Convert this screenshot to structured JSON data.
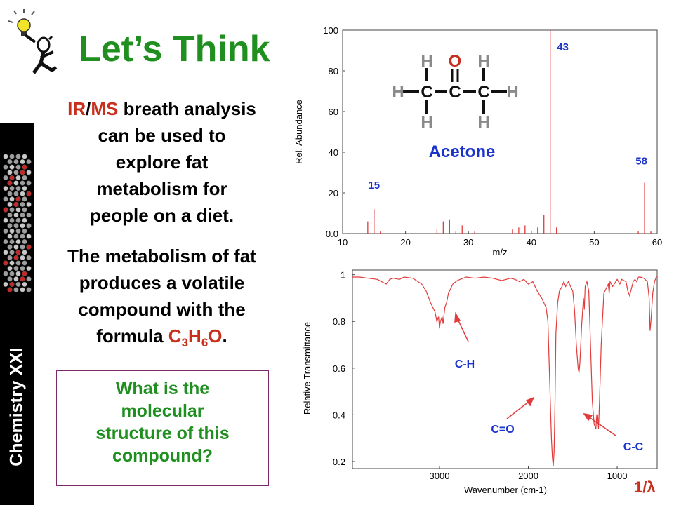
{
  "sidebar": {
    "label": "Chemistry XXI"
  },
  "slide": {
    "title": "Let’s Think",
    "intro": {
      "ir": "IR",
      "slash": "/",
      "ms": "MS",
      "line1_rest": " breath analysis",
      "line2": "can be used to",
      "line3": "explore fat",
      "line4": "metabolism for",
      "line5": "people on a diet."
    },
    "metabolism": {
      "line1": "The metabolism of fat",
      "line2": "produces a volatile",
      "line3": "compound with the",
      "line4_prefix": "formula ",
      "formula_c": "C",
      "formula_c_sub": "3",
      "formula_h": "H",
      "formula_h_sub": "6",
      "formula_o": "O",
      "line4_suffix": "."
    },
    "question": {
      "line1": "What is the",
      "line2": "molecular",
      "line3": "structure of this",
      "line4": "compound?"
    },
    "inverse_wavelength_label": "1/λ"
  },
  "colors": {
    "title_green": "#1f8f1f",
    "accent_red": "#c8301e",
    "spectrum_red": "#e33b3b",
    "annotation_blue": "#1a33cc",
    "structure_gray": "#8a8a8a"
  },
  "acetone_structure": {
    "label": "Acetone",
    "atoms": {
      "carbon": "C",
      "hydrogen": "H",
      "oxygen": "O"
    }
  },
  "chart_data": [
    {
      "type": "bar",
      "subtype": "mass-spectrum",
      "xlabel": "m/z",
      "ylabel": "Rel. Abundance",
      "xlim": [
        10,
        60
      ],
      "ylim": [
        0,
        100
      ],
      "xticks": [
        "10",
        "20",
        "30",
        "40",
        "50",
        "60"
      ],
      "yticks": [
        "0.0",
        "20",
        "40",
        "60",
        "80",
        "100"
      ],
      "grid": false,
      "peaks": [
        {
          "x": 14,
          "y": 6
        },
        {
          "x": 15,
          "y": 12
        },
        {
          "x": 16,
          "y": 1
        },
        {
          "x": 25,
          "y": 2
        },
        {
          "x": 26,
          "y": 6
        },
        {
          "x": 27,
          "y": 7
        },
        {
          "x": 28,
          "y": 1
        },
        {
          "x": 29,
          "y": 4
        },
        {
          "x": 31,
          "y": 1
        },
        {
          "x": 37,
          "y": 2
        },
        {
          "x": 38,
          "y": 3
        },
        {
          "x": 39,
          "y": 4
        },
        {
          "x": 40,
          "y": 1
        },
        {
          "x": 41,
          "y": 3
        },
        {
          "x": 42,
          "y": 9
        },
        {
          "x": 43,
          "y": 100
        },
        {
          "x": 44,
          "y": 3
        },
        {
          "x": 57,
          "y": 1
        },
        {
          "x": 58,
          "y": 25
        },
        {
          "x": 59,
          "y": 1
        }
      ],
      "annotations": [
        {
          "text": "15",
          "x": 15,
          "y": 22
        },
        {
          "text": "43",
          "x": 45,
          "y": 90
        },
        {
          "text": "58",
          "x": 57.5,
          "y": 34
        }
      ]
    },
    {
      "type": "line",
      "subtype": "ir-spectrum",
      "xlabel": "Wavenumber (cm-1)",
      "ylabel": "Relative Transmittance",
      "xlim": [
        3980,
        550
      ],
      "ylim": [
        0.17,
        1.02
      ],
      "xticks": [
        "3000",
        "2000",
        "1000"
      ],
      "xtick_values": [
        3000,
        2000,
        1000
      ],
      "yticks": [
        "0.2",
        "0.4",
        "0.6",
        "0.8",
        "1"
      ],
      "ytick_values": [
        0.2,
        0.4,
        0.6,
        0.8,
        1.0
      ],
      "grid": false,
      "series": [
        {
          "x": [
            3980,
            3900,
            3800,
            3700,
            3600,
            3560,
            3520,
            3450,
            3400,
            3300,
            3200,
            3150,
            3100,
            3050,
            3030,
            3010,
            3000,
            2990,
            2970,
            2960,
            2940,
            2920,
            2900,
            2850,
            2800,
            2700,
            2600,
            2500,
            2400,
            2300,
            2200,
            2150,
            2100,
            2050,
            2000,
            1950,
            1900,
            1850,
            1800,
            1780,
            1760,
            1740,
            1730,
            1720,
            1710,
            1700,
            1690,
            1670,
            1650,
            1620,
            1600,
            1580,
            1550,
            1500,
            1480,
            1460,
            1440,
            1430,
            1420,
            1410,
            1400,
            1380,
            1370,
            1360,
            1340,
            1320,
            1300,
            1280,
            1260,
            1240,
            1230,
            1220,
            1210,
            1200,
            1180,
            1150,
            1100,
            1090,
            1080,
            1050,
            1000,
            970,
            950,
            900,
            880,
            860,
            820,
            800,
            780,
            760,
            740,
            700,
            660,
            640,
            630,
            620,
            600,
            580,
            560,
            550
          ],
          "y": [
            0.99,
            0.99,
            0.985,
            0.98,
            0.96,
            0.98,
            0.985,
            0.98,
            0.99,
            0.985,
            0.96,
            0.93,
            0.88,
            0.84,
            0.8,
            0.82,
            0.77,
            0.8,
            0.82,
            0.79,
            0.86,
            0.88,
            0.92,
            0.96,
            0.975,
            0.99,
            0.985,
            0.99,
            0.985,
            0.975,
            0.985,
            0.98,
            0.97,
            0.98,
            0.96,
            0.97,
            0.93,
            0.9,
            0.86,
            0.8,
            0.55,
            0.3,
            0.22,
            0.18,
            0.24,
            0.45,
            0.75,
            0.88,
            0.93,
            0.95,
            0.97,
            0.95,
            0.97,
            0.93,
            0.85,
            0.7,
            0.6,
            0.58,
            0.62,
            0.7,
            0.78,
            0.9,
            0.85,
            0.95,
            0.97,
            0.93,
            0.7,
            0.46,
            0.36,
            0.34,
            0.4,
            0.4,
            0.34,
            0.45,
            0.7,
            0.92,
            0.96,
            0.92,
            0.97,
            0.95,
            0.98,
            0.96,
            0.98,
            0.97,
            0.93,
            0.91,
            0.97,
            0.98,
            0.97,
            0.99,
            0.99,
            0.985,
            0.97,
            0.9,
            0.76,
            0.8,
            0.92,
            0.97,
            0.99,
            0.99
          ]
        }
      ],
      "annotations": [
        {
          "text": "C-H"
        },
        {
          "text": "C=O"
        },
        {
          "text": "C-C"
        }
      ]
    }
  ]
}
